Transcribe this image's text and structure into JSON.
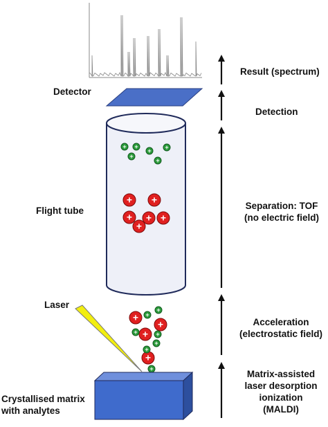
{
  "labels": {
    "detector": "Detector",
    "flight_tube": "Flight tube",
    "laser": "Laser",
    "matrix": "Crystallised matrix\nwith analytes"
  },
  "stages": [
    {
      "text": "Result (spectrum)"
    },
    {
      "text": "Detection"
    },
    {
      "text": "Separation: TOF\n(no electric field)"
    },
    {
      "text": "Acceleration\n(electrostatic field)"
    },
    {
      "text": "Matrix-assisted\nlaser desorption\nionization\n(MALDI)"
    }
  ],
  "ion_symbol": "+",
  "colors": {
    "tube_fill": "#eef0f8",
    "tube_stroke": "#1f2a5a",
    "detector_fill": "#4a6fc7",
    "matrix_fill": "#3f6bcc",
    "large_ion_fill": "#e02020",
    "small_ion_fill": "#2a9a3a",
    "laser_fill": "#f2ee10",
    "spectrum_stroke": "#888888"
  }
}
